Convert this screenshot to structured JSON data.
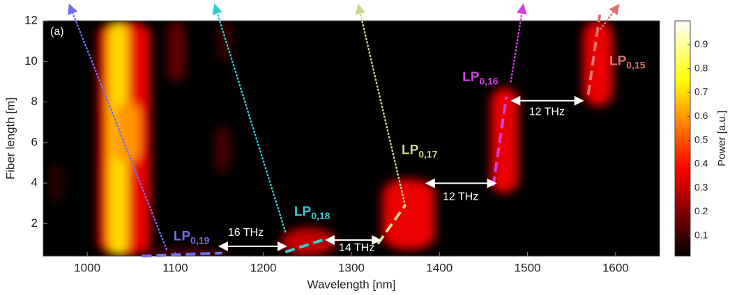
{
  "chart_data": {
    "type": "heatmap",
    "panel_label": "(a)",
    "x_label": "Wavelength [nm]",
    "y_label": "Fiber length [m]",
    "colorbar_label": "Power [a.u.]",
    "colormap": "hot",
    "xlim": [
      950,
      1650
    ],
    "xticks": [
      1000,
      1100,
      1200,
      1300,
      1400,
      1500,
      1600
    ],
    "ylim": [
      0.4,
      12
    ],
    "yticks": [
      2,
      4,
      6,
      8,
      10,
      12
    ],
    "clim": [
      0.015,
      1
    ],
    "cticks": [
      0.1,
      0.2,
      0.3,
      0.4,
      0.5,
      0.6,
      0.7,
      0.8,
      0.9
    ],
    "regions": [
      {
        "x": [
          1012,
          1072
        ],
        "y": [
          0.4,
          12
        ],
        "power": 0.35
      },
      {
        "x": [
          1024,
          1046
        ],
        "y": [
          0.4,
          12
        ],
        "power": 0.7
      },
      {
        "x": [
          1030,
          1060
        ],
        "y": [
          5,
          8
        ],
        "power": 0.6
      },
      {
        "x": [
          1090,
          1112
        ],
        "y": [
          9,
          12
        ],
        "power": 0.15
      },
      {
        "x": [
          1145,
          1162
        ],
        "y": [
          4.5,
          6.8
        ],
        "power": 0.12
      },
      {
        "x": [
          1148,
          1165
        ],
        "y": [
          10,
          12
        ],
        "power": 0.1
      },
      {
        "x": [
          958,
          972
        ],
        "y": [
          3,
          5
        ],
        "power": 0.08
      },
      {
        "x": [
          1060,
          1165
        ],
        "y": [
          0.4,
          0.7
        ],
        "power": 0.2
      },
      {
        "x": [
          1220,
          1282
        ],
        "y": [
          0.4,
          1.8
        ],
        "power": 0.3
      },
      {
        "x": [
          1335,
          1395
        ],
        "y": [
          0.7,
          4.2
        ],
        "power": 0.35
      },
      {
        "x": [
          1458,
          1490
        ],
        "y": [
          3.5,
          8.7
        ],
        "power": 0.35
      },
      {
        "x": [
          1563,
          1597
        ],
        "y": [
          7.8,
          12
        ],
        "power": 0.35
      }
    ],
    "modes": [
      {
        "label": "LP",
        "sub": "0,19",
        "color": "#7070f0",
        "label_at": [
          1098,
          1.34
        ],
        "dotted": [
          [
            1090,
            0.74
          ],
          [
            980,
            12.76
          ]
        ],
        "dashed": [
          [
            1062,
            0.4
          ],
          [
            1153,
            0.55
          ]
        ]
      },
      {
        "label": "LP",
        "sub": "0,18",
        "color": "#30d0d0",
        "label_at": [
          1235,
          2.57
        ],
        "dotted": [
          [
            1225,
            1.6
          ],
          [
            1145,
            12.76
          ]
        ],
        "dashed": [
          [
            1225,
            0.6
          ],
          [
            1272,
            1.26
          ]
        ]
      },
      {
        "label": "LP",
        "sub": "0,17",
        "color": "#c8d890",
        "label_at": [
          1357,
          5.6
        ],
        "dotted": [
          [
            1361,
            2.9
          ],
          [
            1308,
            12.76
          ]
        ],
        "dashed": [
          [
            1330,
            1.0
          ],
          [
            1361,
            2.9
          ]
        ]
      },
      {
        "label": "LP",
        "sub": "0,16",
        "color": "#d040e0",
        "label_at": [
          1426,
          9.2
        ],
        "dotted": [
          [
            1481,
            9.0
          ],
          [
            1495,
            12.76
          ]
        ],
        "dashed": [
          [
            1461,
            3.85
          ],
          [
            1476,
            8.26
          ]
        ]
      },
      {
        "label": "LP",
        "sub": "0,15",
        "color": "#e07070",
        "label_at": [
          1593,
          10.0
        ],
        "dotted": [
          [
            1583,
            11.6
          ],
          [
            1603,
            12.76
          ]
        ],
        "dashed": [
          [
            1569,
            8.36
          ],
          [
            1582,
            12.3
          ]
        ]
      }
    ],
    "spacings": [
      {
        "text": "16 THz",
        "from": [
          1151,
          0.88
        ],
        "to": [
          1225,
          0.88
        ],
        "label_at": [
          1180,
          1.54
        ]
      },
      {
        "text": "14 THz",
        "from": [
          1272,
          1.19
        ],
        "to": [
          1332,
          1.19
        ],
        "label_at": [
          1306,
          0.78
        ]
      },
      {
        "text": "12 THz",
        "from": [
          1386,
          3.99
        ],
        "to": [
          1463,
          3.99
        ],
        "label_at": [
          1424,
          3.3
        ]
      },
      {
        "text": "12 THz",
        "from": [
          1483,
          8.06
        ],
        "to": [
          1562,
          8.06
        ],
        "label_at": [
          1522,
          7.5
        ]
      }
    ]
  }
}
